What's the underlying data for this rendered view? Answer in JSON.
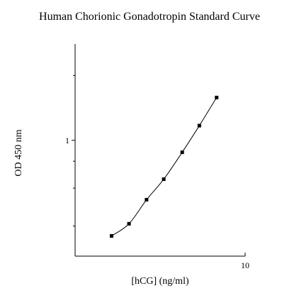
{
  "chart_data": {
    "type": "scatter",
    "title": "Human Chorionic Gonadotropin Standard Curve",
    "xlabel": "[hCG] (ng/ml)",
    "ylabel": "OD 450 nm",
    "x_scale": "log",
    "y_scale": "log",
    "xlim": [
      1.8,
      10
    ],
    "ylim": [
      0.29,
      2.8
    ],
    "x_ticks": [
      10
    ],
    "x_tick_labels": [
      "10"
    ],
    "y_ticks": [
      0.4,
      0.6,
      0.8,
      1,
      2
    ],
    "y_tick_labels": [
      "",
      "",
      "",
      "1",
      ""
    ],
    "grid": false,
    "series": [
      {
        "x": [
          2.6,
          3.1,
          3.7,
          4.4,
          5.3,
          6.3,
          7.5
        ],
        "y": [
          0.36,
          0.41,
          0.53,
          0.66,
          0.88,
          1.17,
          1.58
        ],
        "marker": "square",
        "line": "smooth",
        "color": "#000000"
      }
    ]
  }
}
